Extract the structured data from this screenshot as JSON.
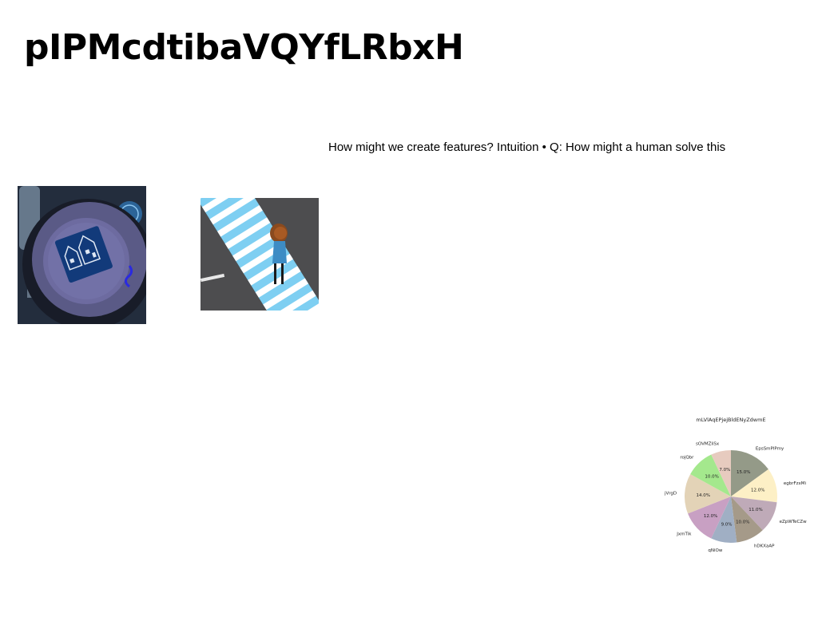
{
  "page": {
    "title": "pIPMcdtibaVQYfLRbxH",
    "caption": "How might we create features? Intuition • Q: How might a human solve this"
  },
  "images": [
    {
      "name": "table-setting-photo",
      "icon": "photo-icon"
    },
    {
      "name": "crosswalk-photo",
      "icon": "photo-icon"
    }
  ],
  "chart_data": {
    "type": "pie",
    "title": "mLVlAqEPjejBldENyZdwmE",
    "categories": [
      "EpsSmPlPmy",
      "egbrFzxMi",
      "eZpWTeCZwc",
      "hDKXaAP",
      "qNiOw",
      "JxmTik",
      "jVrgD",
      "rojQbr",
      "sOVMZliSx"
    ],
    "values": [
      15.0,
      12.0,
      11.0,
      10.0,
      9.0,
      12.0,
      14.0,
      10.0,
      7.0
    ],
    "value_labels": [
      "15.0%",
      "12.0%",
      "11.0%",
      "10.0%",
      "9.0%",
      "12.0%",
      "14.0%",
      "10.0%",
      "7.0%"
    ],
    "colors": [
      "#949a88",
      "#fdf0c6",
      "#bfaab8",
      "#a59a89",
      "#a0afc4",
      "#c8a0c3",
      "#e3d3b7",
      "#a4e88d",
      "#e7cbbf"
    ],
    "start_angle_deg": 90,
    "direction": "clockwise",
    "legend": "none"
  }
}
